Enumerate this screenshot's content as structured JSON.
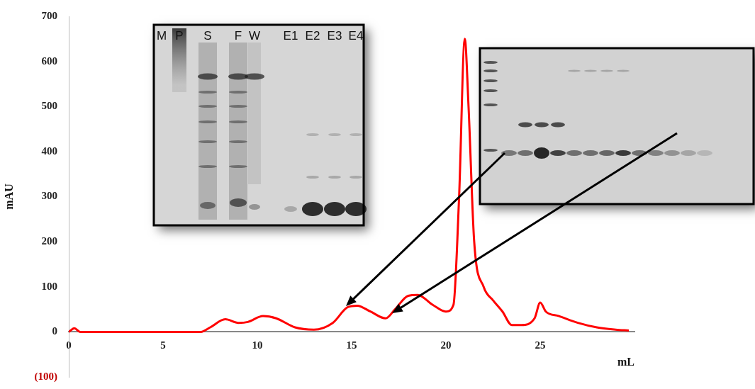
{
  "chart_data": {
    "type": "line",
    "x_label": "mL",
    "y_label": "mAU",
    "x": [
      0,
      0.3,
      0.6,
      7,
      7.5,
      8.3,
      9,
      9.5,
      10.3,
      11,
      12,
      13,
      14,
      14.8,
      15.3,
      16,
      16.8,
      17.3,
      18,
      18.5,
      19.3,
      20,
      20.4,
      20.7,
      21,
      21.2,
      21.5,
      22,
      22.5,
      23,
      23.5,
      24,
      24.7,
      25,
      25.3,
      26,
      27,
      28,
      29,
      29.7
    ],
    "values": [
      0,
      8,
      0,
      0,
      10,
      28,
      20,
      22,
      35,
      30,
      10,
      5,
      20,
      55,
      58,
      45,
      30,
      50,
      80,
      82,
      60,
      45,
      60,
      300,
      650,
      500,
      200,
      100,
      70,
      45,
      15,
      15,
      30,
      65,
      45,
      35,
      20,
      10,
      5,
      3
    ],
    "color": "#ff0000",
    "xlim": [
      0,
      30
    ],
    "xticks": [
      0,
      5,
      10,
      15,
      20,
      25
    ],
    "ylim": [
      -100,
      700
    ],
    "yticks": [
      {
        "value": -100,
        "label": "(100)"
      },
      0,
      100,
      200,
      300,
      400,
      500,
      600,
      700
    ],
    "grid": false,
    "gel_lane_labels": [
      "M",
      "P",
      "S",
      "F",
      "W",
      "E1",
      "E2",
      "E3",
      "E4"
    ]
  }
}
